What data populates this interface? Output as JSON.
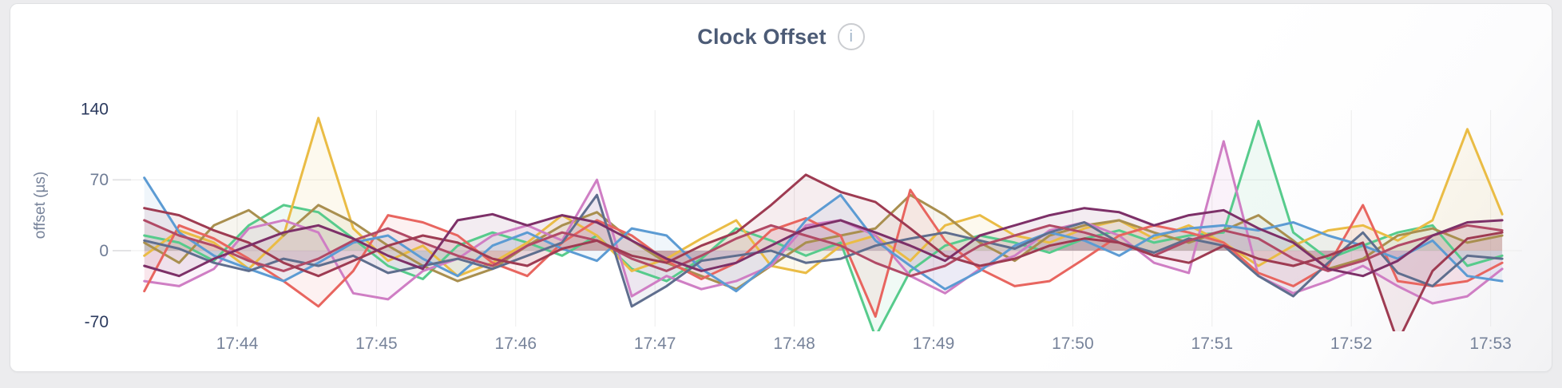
{
  "card": {
    "title": "Clock Offset",
    "info_icon_glyph": "i"
  },
  "chart_data": {
    "type": "line",
    "title": "Clock Offset",
    "xlabel": "",
    "ylabel": "offset (µs)",
    "ylim": [
      -70,
      140
    ],
    "grid": "on",
    "legend": "none",
    "y_ticks": [
      {
        "label": "140",
        "value": 140,
        "emphasis": true
      },
      {
        "label": "70",
        "value": 70,
        "emphasis": false
      },
      {
        "label": "0",
        "value": 0,
        "emphasis": false
      },
      {
        "label": "-70",
        "value": -70,
        "emphasis": true
      }
    ],
    "x_ticks": [
      {
        "label": "17:44",
        "t": 1
      },
      {
        "label": "17:45",
        "t": 2
      },
      {
        "label": "17:46",
        "t": 3
      },
      {
        "label": "17:47",
        "t": 4
      },
      {
        "label": "17:48",
        "t": 5
      },
      {
        "label": "17:49",
        "t": 6
      },
      {
        "label": "17:50",
        "t": 7
      },
      {
        "label": "17:51",
        "t": 8
      },
      {
        "label": "17:52",
        "t": 9
      },
      {
        "label": "17:53",
        "t": 10
      }
    ],
    "time_reference": "minutes after 17:43",
    "t0_minutes": 0.3333,
    "dt_minutes": 0.25,
    "series": [
      {
        "name": "green",
        "color": "#57cb8c",
        "values": [
          15,
          8,
          -10,
          25,
          45,
          38,
          12,
          -15,
          -28,
          5,
          18,
          8,
          -5,
          15,
          -18,
          -30,
          -8,
          22,
          10,
          -5,
          8,
          -85,
          -20,
          5,
          15,
          8,
          -2,
          12,
          20,
          8,
          15,
          18,
          128,
          18,
          -8,
          5,
          18,
          25,
          -15,
          -5
        ]
      },
      {
        "name": "yellow",
        "color": "#eabc45",
        "values": [
          -5,
          20,
          8,
          -18,
          15,
          131,
          22,
          -10,
          5,
          -25,
          -12,
          8,
          35,
          15,
          -20,
          -8,
          12,
          30,
          -15,
          -22,
          5,
          15,
          -10,
          25,
          35,
          15,
          8,
          22,
          30,
          12,
          25,
          8,
          -15,
          5,
          20,
          25,
          10,
          30,
          120,
          36
        ]
      },
      {
        "name": "khaki",
        "color": "#a98f4f",
        "values": [
          8,
          -12,
          25,
          40,
          15,
          45,
          28,
          5,
          -15,
          -30,
          -18,
          5,
          25,
          38,
          10,
          -12,
          -25,
          -38,
          -15,
          8,
          15,
          22,
          55,
          35,
          8,
          -10,
          15,
          25,
          30,
          18,
          8,
          20,
          35,
          10,
          -18,
          -8,
          15,
          22,
          8,
          15
        ]
      },
      {
        "name": "orchid",
        "color": "#cf7ec4",
        "values": [
          -30,
          -35,
          -18,
          22,
          30,
          18,
          -42,
          -48,
          -20,
          -8,
          15,
          25,
          10,
          70,
          -45,
          -25,
          -38,
          -30,
          -15,
          25,
          30,
          15,
          -25,
          -42,
          -18,
          -5,
          20,
          28,
          15,
          -12,
          -22,
          108,
          -25,
          -42,
          -30,
          -15,
          -35,
          -52,
          -45,
          -18
        ]
      },
      {
        "name": "salmon",
        "color": "#e8655f",
        "values": [
          -40,
          25,
          12,
          -8,
          -30,
          -55,
          -20,
          35,
          28,
          15,
          -12,
          -25,
          8,
          30,
          15,
          -10,
          -28,
          -12,
          20,
          32,
          15,
          -65,
          60,
          10,
          -18,
          -35,
          -30,
          -8,
          15,
          25,
          18,
          8,
          -22,
          -35,
          -15,
          45,
          -30,
          -35,
          -30,
          -12
        ]
      },
      {
        "name": "blue",
        "color": "#5c9bd3",
        "values": [
          72,
          18,
          -5,
          -18,
          -30,
          -12,
          8,
          15,
          -8,
          -25,
          5,
          18,
          2,
          -10,
          22,
          15,
          -18,
          -40,
          -12,
          30,
          55,
          10,
          -15,
          -38,
          -20,
          5,
          18,
          10,
          -5,
          15,
          22,
          25,
          20,
          28,
          15,
          5,
          -8,
          10,
          -25,
          -30
        ]
      },
      {
        "name": "slate",
        "color": "#5f6e8e",
        "values": [
          10,
          2,
          -12,
          -20,
          -8,
          -15,
          -5,
          -22,
          -15,
          -8,
          -18,
          -5,
          8,
          55,
          -55,
          -35,
          -10,
          -5,
          0,
          -12,
          -8,
          5,
          12,
          18,
          10,
          2,
          18,
          28,
          8,
          -2,
          12,
          5,
          -25,
          -45,
          -12,
          18,
          -22,
          -35,
          -5,
          -8
        ]
      },
      {
        "name": "crimson",
        "color": "#b14a66",
        "values": [
          30,
          15,
          5,
          -10,
          -20,
          -8,
          10,
          22,
          8,
          -5,
          -15,
          5,
          18,
          10,
          -8,
          -20,
          -5,
          12,
          25,
          15,
          5,
          -12,
          -25,
          -15,
          5,
          15,
          25,
          18,
          8,
          -5,
          10,
          20,
          12,
          -8,
          -20,
          -10,
          5,
          15,
          25,
          20
        ]
      },
      {
        "name": "maroon",
        "color": "#9e3b52",
        "values": [
          42,
          35,
          20,
          8,
          -12,
          -25,
          -10,
          5,
          15,
          8,
          -8,
          -15,
          2,
          10,
          -5,
          -12,
          5,
          18,
          45,
          75,
          58,
          48,
          22,
          -5,
          -15,
          -8,
          5,
          12,
          8,
          -5,
          -12,
          5,
          -8,
          -15,
          -5,
          8,
          -90,
          -20,
          12,
          18
        ]
      },
      {
        "name": "plum",
        "color": "#7d3068",
        "values": [
          -15,
          -25,
          -8,
          5,
          18,
          25,
          12,
          -5,
          -18,
          30,
          36,
          25,
          35,
          28,
          10,
          -8,
          -20,
          -12,
          5,
          22,
          30,
          18,
          5,
          -10,
          15,
          25,
          35,
          42,
          38,
          25,
          35,
          40,
          22,
          8,
          -18,
          -25,
          -10,
          15,
          28,
          30
        ]
      }
    ]
  }
}
